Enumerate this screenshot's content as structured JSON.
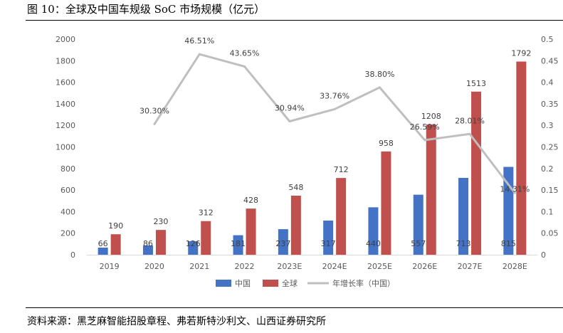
{
  "figure": {
    "title": "图 10：全球及中国车规级 SoC 市场规模（亿元）",
    "source": "资料来源：黑芝麻智能招股章程、弗若斯特沙利文、山西证券研究所"
  },
  "chart_data": {
    "type": "bar",
    "categories": [
      "2019",
      "2020",
      "2021",
      "2022",
      "2023E",
      "2024E",
      "2025E",
      "2026E",
      "2027E",
      "2028E"
    ],
    "series": [
      {
        "name": "中国",
        "type": "bar",
        "axis": "left",
        "color": "#4472C4",
        "values": [
          66,
          86,
          126,
          181,
          237,
          317,
          440,
          557,
          713,
          815
        ],
        "labels": [
          "66",
          "86",
          "126",
          "181",
          "237",
          "317",
          "440",
          "557",
          "713",
          "815"
        ]
      },
      {
        "name": "全球",
        "type": "bar",
        "axis": "left",
        "color": "#C0504D",
        "values": [
          190,
          230,
          312,
          428,
          548,
          712,
          958,
          1208,
          1513,
          1792
        ],
        "labels": [
          "190",
          "230",
          "312",
          "428",
          "548",
          "712",
          "958",
          "1208",
          "1513",
          "1792"
        ]
      },
      {
        "name": "年增长率（中国）",
        "type": "line",
        "axis": "right",
        "color": "#BFBFBF",
        "values": [
          null,
          0.303,
          0.4651,
          0.4365,
          0.3094,
          0.3376,
          0.388,
          0.2659,
          0.2801,
          0.1431
        ],
        "labels": [
          null,
          "30.30%",
          "46.51%",
          "43.65%",
          "30.94%",
          "33.76%",
          "38.80%",
          "26.59%",
          "28.01%",
          "14.31%"
        ]
      }
    ],
    "y_left": {
      "min": 0,
      "max": 2000,
      "ticks": [
        "0",
        "200",
        "400",
        "600",
        "800",
        "1000",
        "1200",
        "1400",
        "1600",
        "1800",
        "2000"
      ]
    },
    "y_right": {
      "min": 0,
      "max": 0.5,
      "ticks": [
        "0",
        "0.05",
        "0.1",
        "0.15",
        "0.2",
        "0.25",
        "0.3",
        "0.35",
        "0.4",
        "0.45",
        "0.5"
      ]
    },
    "legend_position": "bottom-center",
    "grid": false
  }
}
